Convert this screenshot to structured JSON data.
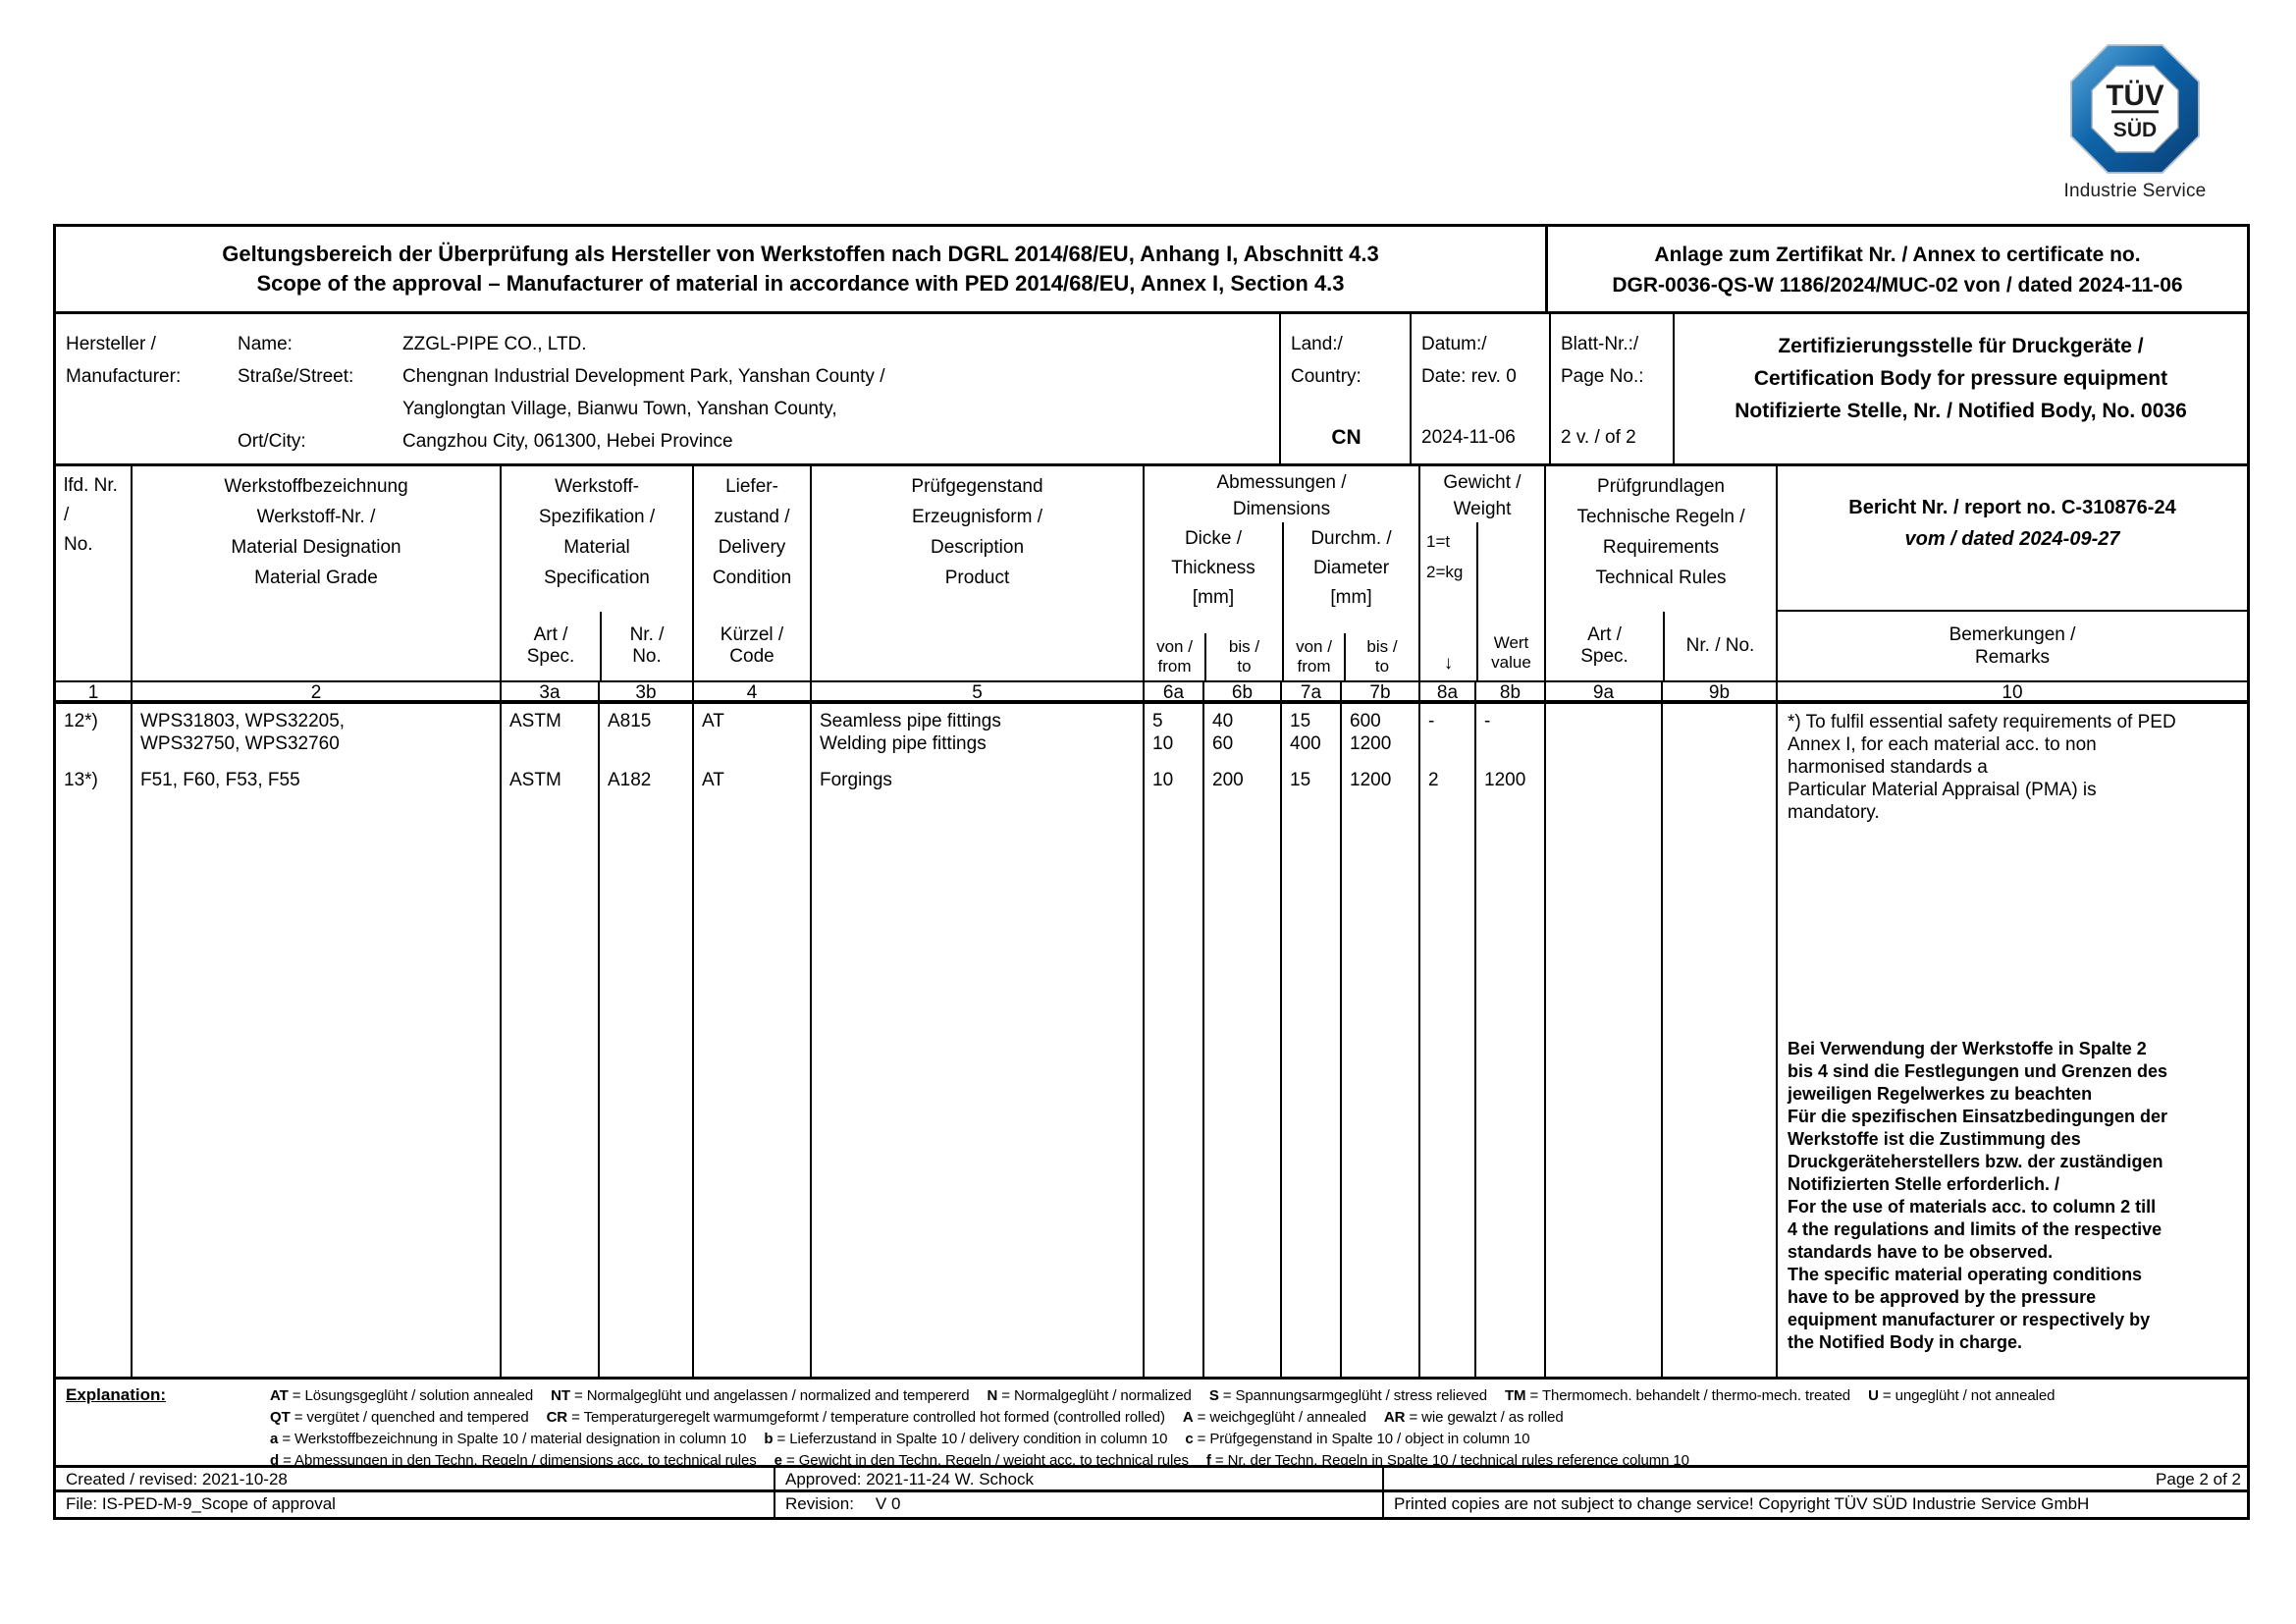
{
  "logo": {
    "tuv": "TÜV",
    "sud": "SÜD",
    "caption": "Industrie Service",
    "blue": "#0e63a9"
  },
  "header": {
    "title_de": "Geltungsbereich der Überprüfung als Hersteller von Werkstoffen nach DGRL 2014/68/EU, Anhang I, Abschnitt 4.3",
    "title_en": "Scope of the approval – Manufacturer of material in accordance with PED 2014/68/EU, Annex I, Section 4.3",
    "annex_line1": "Anlage zum Zertifikat Nr. / Annex to certificate no.",
    "annex_line2": "DGR-0036-QS-W 1186/2024/MUC-02 von / dated 2024-11-06"
  },
  "manufacturer": {
    "label1": "Hersteller /",
    "label2": "Manufacturer:",
    "name_label": "Name:",
    "name_value": "ZZGL-PIPE CO., LTD.",
    "street_label": "Straße/Street:",
    "street_value1": "Chengnan Industrial Development Park, Yanshan County /",
    "street_value2": "Yanglongtan Village, Bianwu Town, Yanshan County,",
    "city_label": "Ort/City:",
    "city_value": "Cangzhou City, 061300, Hebei Province",
    "country_label1": "Land:/",
    "country_label2": "Country:",
    "country_value": "CN",
    "date_label1": "Datum:/",
    "date_label2": "Date: rev. 0",
    "date_value": "2024-11-06",
    "page_label1": "Blatt-Nr.:/",
    "page_label2": "Page No.:",
    "page_value": "2 v. / of 2",
    "certbody1": "Zertifizierungsstelle für Druckgeräte /",
    "certbody2": "Certification Body for pressure equipment",
    "certbody3": "Notifizierte Stelle, Nr. / Notified Body, No. 0036"
  },
  "thead": {
    "c1": "lfd. Nr.\n/\nNo.",
    "c2": "Werkstoffbezeichnung\nWerkstoff-Nr. /\nMaterial Designation\nMaterial Grade",
    "c3_top": "Werkstoff-\nSpezifikation /\nMaterial\nSpecification",
    "c3a": "Art /\nSpec.",
    "c3b": "Nr. /\nNo.",
    "c4_top": "Liefer-\nzustand /\nDelivery\nCondition",
    "c4_sub": "Kürzel /\nCode",
    "c5": "Prüfgegenstand\nErzeugnisform /\nDescription\nProduct",
    "c67_top": "Abmessungen /\nDimensions",
    "c6_label": "Dicke /\nThickness\n[mm]",
    "c7_label": "Durchm. /\nDiameter\n[mm]",
    "von": "von /\nfrom",
    "bis": "bis /\nto",
    "c8_top": "Gewicht /\nWeight",
    "c8_units": "1=t\n2=kg",
    "c8_arrow": "↓",
    "c8b_label": "Wert\nvalue",
    "c9_top": "Prüfgrundlagen\nTechnische Regeln /\nRequirements\nTechnical Rules",
    "c9a": "Art /\nSpec.",
    "c9b": "Nr. / No.",
    "c10_report_line1": "Bericht Nr. / report no. C-310876-24",
    "c10_report_line2": "vom / dated 2024-09-27",
    "c10_sub": "Bemerkungen /\nRemarks",
    "numbers": [
      "1",
      "2",
      "3a",
      "3b",
      "4",
      "5",
      "6a",
      "6b",
      "7a",
      "7b",
      "8a",
      "8b",
      "9a",
      "9b",
      "10"
    ]
  },
  "rows": {
    "r12": {
      "no": "12*)",
      "grade": "WPS31803, WPS32205,\nWPS32750, WPS32760",
      "spec": "ASTM",
      "specno": "A815",
      "code": "AT",
      "product": "Seamless pipe fittings\nWelding pipe fittings",
      "t_from": "5\n10",
      "t_to": "40\n60",
      "d_from": "15\n400",
      "d_to": "600\n1200",
      "w_unit": "-",
      "w_value": "-"
    },
    "r13": {
      "no": "13*)",
      "grade": "F51, F60, F53, F55",
      "spec": "ASTM",
      "specno": "A182",
      "code": "AT",
      "product": "Forgings",
      "t_from": "10",
      "t_to": "200",
      "d_from": "15",
      "d_to": "1200",
      "w_unit": "2",
      "w_value": "1200"
    }
  },
  "remarks": {
    "note": "*) To fulfil essential safety requirements of PED\nAnnex I, for each material acc. to non\nharmonised standards a\nParticular Material Appraisal (PMA) is\nmandatory.",
    "usage": "Bei Verwendung der Werkstoffe in Spalte 2\nbis 4 sind die Festlegungen und Grenzen des\njeweiligen Regelwerkes zu beachten\nFür die spezifischen Einsatzbedingungen der\nWerkstoffe ist die Zustimmung des\nDruckgeräteherstellers bzw. der zuständigen\nNotifizierten Stelle erforderlich. /\nFor the use of materials acc. to column 2 till\n4 the regulations and limits of the respective\nstandards have to be observed.\nThe specific material operating conditions\nhave to be approved by the pressure\nequipment manufacturer or respectively by\nthe Notified Body in charge."
  },
  "explanation": {
    "label": "Explanation:",
    "lines": [
      [
        [
          "AT",
          " = Lösungsgeglüht / solution annealed"
        ],
        [
          "NT",
          " = Normalgeglüht und angelassen / normalized and tempererd"
        ],
        [
          "N",
          " = Normalgeglüht / normalized"
        ],
        [
          "S",
          " = Spannungsarmgeglüht / stress relieved"
        ],
        [
          "TM",
          " = Thermomech. behandelt / thermo-mech. treated"
        ],
        [
          "U",
          " = ungeglüht / not annealed"
        ]
      ],
      [
        [
          "QT",
          " = vergütet / quenched and tempered"
        ],
        [
          "CR",
          " = Temperaturgeregelt warmumgeformt / temperature controlled hot formed (controlled rolled)"
        ],
        [
          "A",
          " =  weichgeglüht / annealed"
        ],
        [
          "AR",
          " = wie gewalzt / as rolled"
        ]
      ],
      [
        [
          "a",
          " = Werkstoffbezeichnung in Spalte 10 / material designation in column 10"
        ],
        [
          "b",
          " = Lieferzustand in Spalte 10 / delivery condition in column 10"
        ],
        [
          "c",
          " = Prüfgegenstand in Spalte 10 / object in column 10"
        ]
      ],
      [
        [
          "d",
          " = Abmessungen in den Techn. Regeln / dimensions acc. to technical rules"
        ],
        [
          "e",
          " = Gewicht in den Techn. Regeln / weight acc. to technical rules"
        ],
        [
          "f",
          " = Nr. der Techn. Regeln in Spalte 10 / technical rules reference column 10"
        ]
      ]
    ]
  },
  "footer": {
    "created": "Created / revised: 2021-10-28",
    "approved": "Approved: 2021-11-24 W. Schock",
    "page": "Page 2 of 2",
    "file": "File: IS-PED-M-9_Scope of approval",
    "revision_label": "Revision:",
    "revision_value": "V 0",
    "copyright": "Printed copies are not subject to change service! Copyright TÜV SÜD Industrie Service GmbH"
  }
}
